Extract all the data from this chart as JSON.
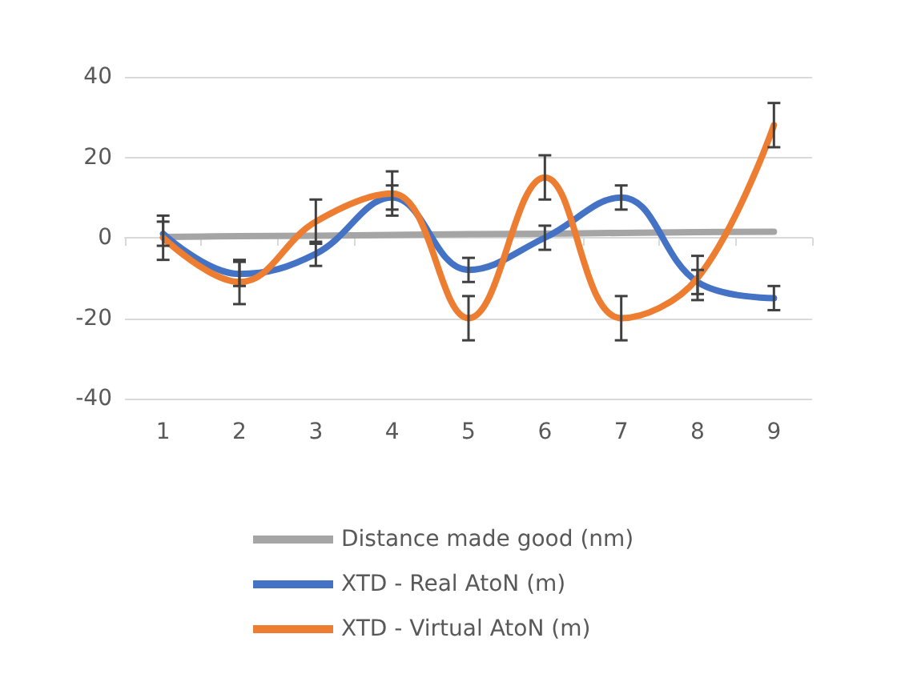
{
  "chart_data": {
    "type": "line",
    "categories": [
      "1",
      "2",
      "3",
      "4",
      "5",
      "6",
      "7",
      "8",
      "9"
    ],
    "series": [
      {
        "name": "Distance made good (nm)",
        "color": "#a5a5a5",
        "values": [
          0.2,
          0.4,
          0.5,
          0.7,
          0.9,
          1.0,
          1.2,
          1.4,
          1.5
        ]
      },
      {
        "name": "XTD - Real AtoN (m)",
        "color": "#4472c4",
        "values": [
          1,
          -9,
          -4,
          10,
          -8,
          0,
          10,
          -11,
          -15
        ],
        "errors": [
          3,
          3,
          3,
          3,
          3,
          3,
          3,
          3,
          3
        ]
      },
      {
        "name": "XTD - Virtual AtoN (m)",
        "color": "#ed7d31",
        "values": [
          0,
          -11,
          4,
          11,
          -20,
          15,
          -20,
          -10,
          28
        ],
        "errors": [
          5.5,
          5.5,
          5.5,
          5.5,
          5.5,
          5.5,
          5.5,
          5.5,
          5.5
        ]
      }
    ],
    "ylim": [
      -40,
      40
    ],
    "yticks": [
      -40,
      -20,
      0,
      20,
      40
    ],
    "grid": "y",
    "legend": "bottom",
    "marker": "none",
    "line_style": "solid"
  }
}
